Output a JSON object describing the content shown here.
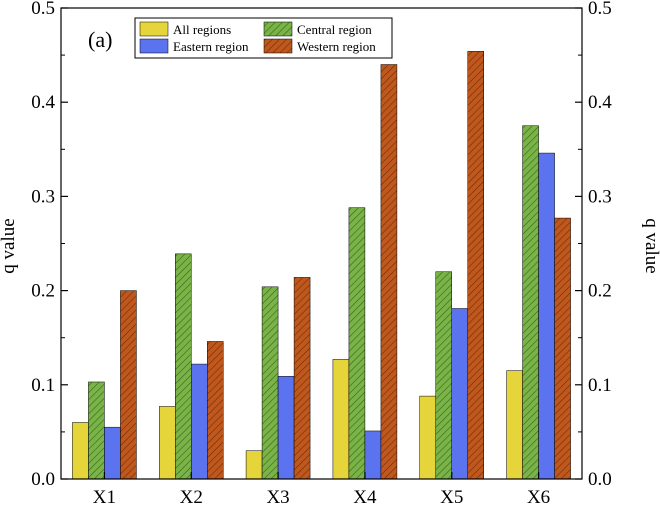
{
  "chart_data": {
    "type": "bar",
    "panel_label": "(a)",
    "categories": [
      "X1",
      "X2",
      "X3",
      "X4",
      "X5",
      "X6"
    ],
    "ylabel": "q value",
    "ylabel_right": "q value",
    "xlabel": "",
    "ylim": [
      0,
      0.5
    ],
    "yticks": [
      0.0,
      0.1,
      0.2,
      0.3,
      0.4,
      0.5
    ],
    "ytick_labels": [
      "0.0",
      "0.1",
      "0.2",
      "0.3",
      "0.4",
      "0.5"
    ],
    "grid": false,
    "legend_position": "top-left",
    "series": [
      {
        "name": "All regions",
        "color": "#e6d53a",
        "pattern": "solid",
        "values": [
          0.06,
          0.077,
          0.03,
          0.127,
          0.088,
          0.115
        ]
      },
      {
        "name": "Central region",
        "color": "#79b447",
        "pattern": "hatch",
        "values": [
          0.103,
          0.239,
          0.204,
          0.288,
          0.22,
          0.375
        ]
      },
      {
        "name": "Eastern region",
        "color": "#5c73f0",
        "pattern": "solid",
        "values": [
          0.055,
          0.122,
          0.109,
          0.051,
          0.181,
          0.346
        ]
      },
      {
        "name": "Western region",
        "color": "#c0571c",
        "pattern": "hatch",
        "values": [
          0.2,
          0.146,
          0.214,
          0.44,
          0.454,
          0.277
        ]
      }
    ]
  }
}
